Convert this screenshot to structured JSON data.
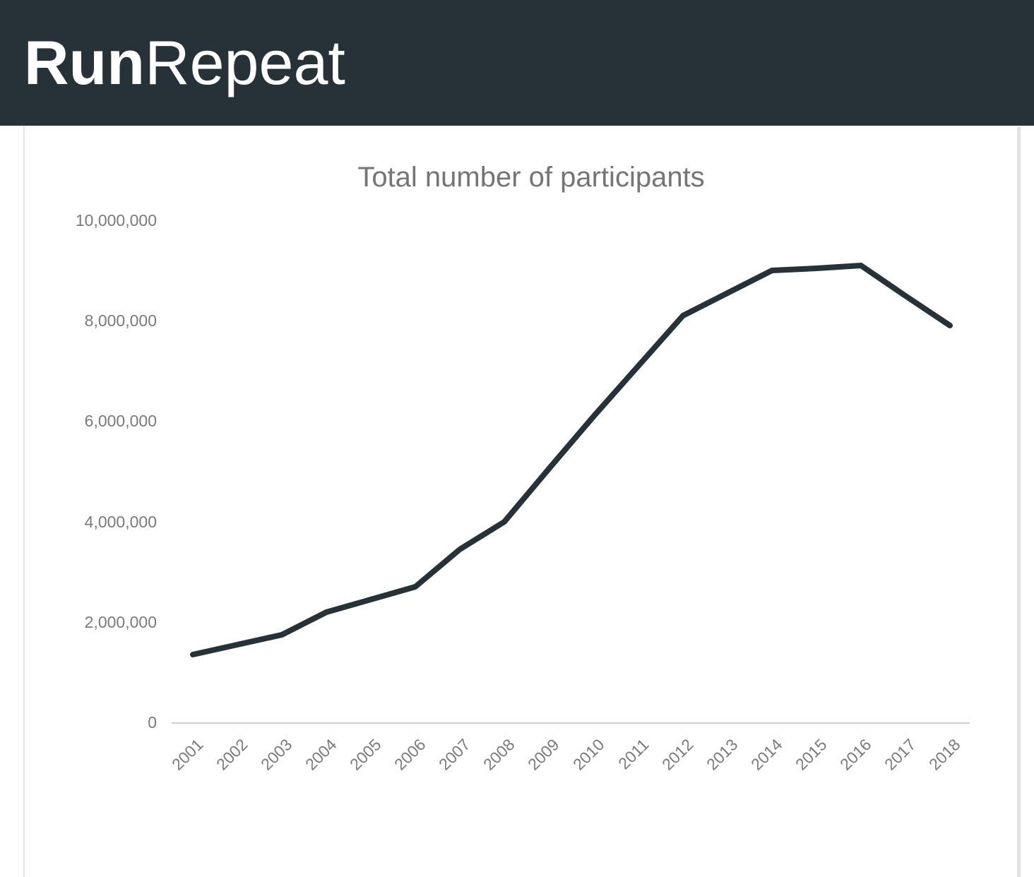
{
  "header": {
    "brand_bold": "Run",
    "brand_light": "Repeat"
  },
  "colors": {
    "header_bg": "#263238",
    "logo_text": "#ffffff",
    "line": "#263238",
    "title_text": "#757575",
    "axis_text": "#7a7a7a",
    "axis_line": "#cfcfcf",
    "border": "#e6e6e6",
    "scrollbar": "#e2e2e2"
  },
  "chart_data": {
    "type": "line",
    "title": "Total number of participants",
    "categories": [
      "2001",
      "2002",
      "2003",
      "2004",
      "2005",
      "2006",
      "2007",
      "2008",
      "2009",
      "2010",
      "2011",
      "2012",
      "2013",
      "2014",
      "2015",
      "2016",
      "2017",
      "2018"
    ],
    "values": [
      1350000,
      1550000,
      1750000,
      2200000,
      2450000,
      2700000,
      3450000,
      4000000,
      5050000,
      6100000,
      7100000,
      8100000,
      8550000,
      9000000,
      9050000,
      9100000,
      8500000,
      7900000
    ],
    "xlabel": "",
    "ylabel": "",
    "ylim": [
      0,
      10000000
    ],
    "ytick_step": 2000000,
    "grid": false,
    "legend": false,
    "x_label_rotation_deg": -45
  }
}
